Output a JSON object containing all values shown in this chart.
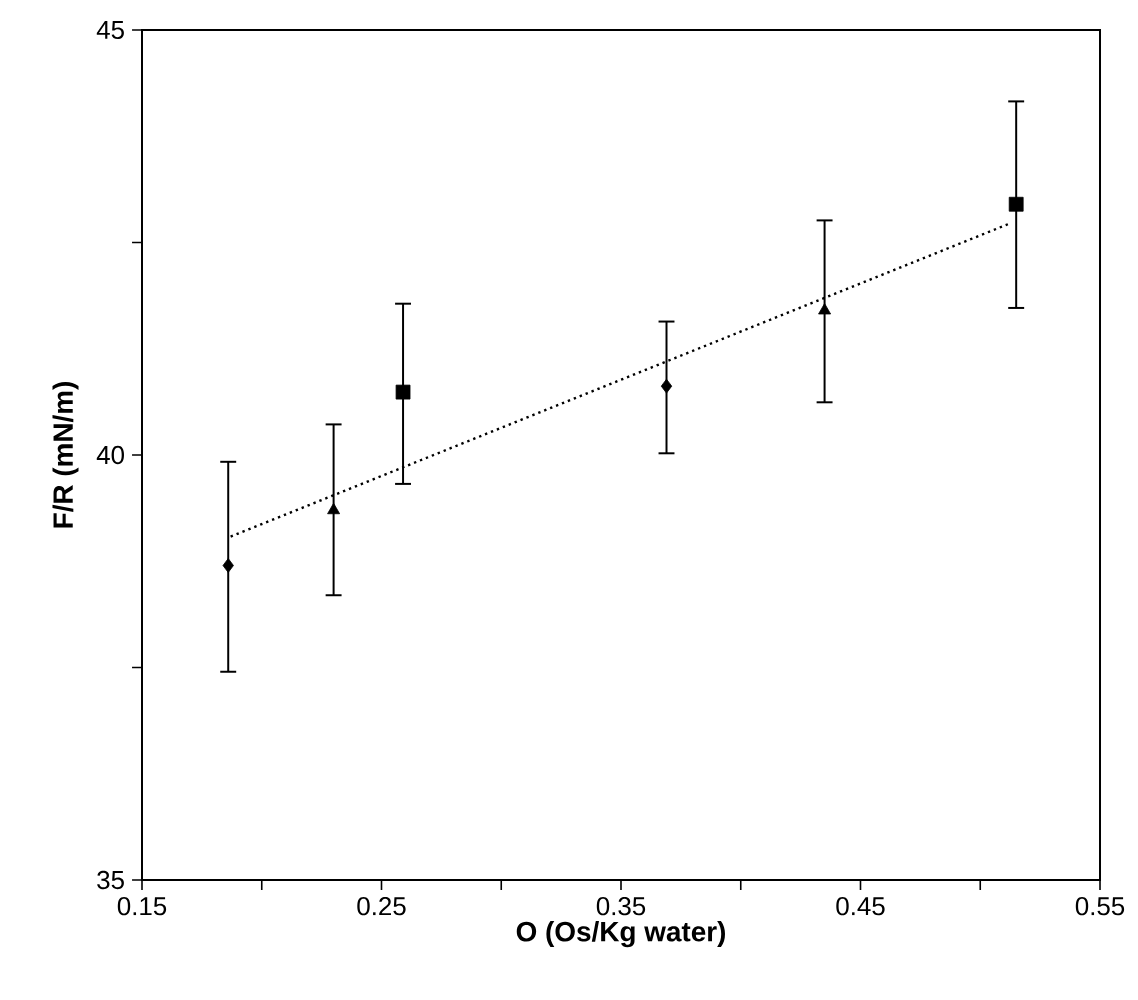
{
  "chart_data": {
    "type": "scatter",
    "xlabel": "O (Os/Kg water)",
    "ylabel": "F/R (mN/m)",
    "xlim": [
      0.15,
      0.55
    ],
    "ylim": [
      35,
      45
    ],
    "xticks": [
      0.15,
      {
        "value": 0.2,
        "label": null
      },
      0.25,
      {
        "value": 0.3,
        "label": null
      },
      0.35,
      {
        "value": 0.4,
        "label": null
      },
      0.45,
      {
        "value": 0.5,
        "label": null
      },
      0.55
    ],
    "yticks": [
      35,
      {
        "value": 37.5,
        "label": null
      },
      40,
      {
        "value": 42.5,
        "label": null
      },
      45
    ],
    "grid": false,
    "series": [
      {
        "color": "#000000",
        "marker": "diamond",
        "x": [
          0.186,
          0.369
        ],
        "values": [
          38.7,
          40.81
        ],
        "errors": [
          [
            37.45,
            39.92
          ],
          [
            40.02,
            41.57
          ]
        ]
      },
      {
        "color": "#000000",
        "marker": "triangle",
        "x": [
          0.23,
          0.435
        ],
        "values": [
          39.35,
          41.7
        ],
        "errors": [
          [
            38.35,
            40.36
          ],
          [
            40.62,
            42.76
          ]
        ]
      },
      {
        "color": "#000000",
        "marker": "square",
        "x": [
          0.259,
          0.515
        ],
        "values": [
          40.74,
          42.95
        ],
        "errors": [
          [
            39.66,
            41.78
          ],
          [
            41.73,
            44.16
          ]
        ]
      },
      {
        "type": "line",
        "color": "#000000",
        "marker": "none",
        "line_style": "dotted",
        "x": [
          0.187,
          0.512
        ],
        "values": [
          39.04,
          42.72
        ]
      }
    ]
  }
}
